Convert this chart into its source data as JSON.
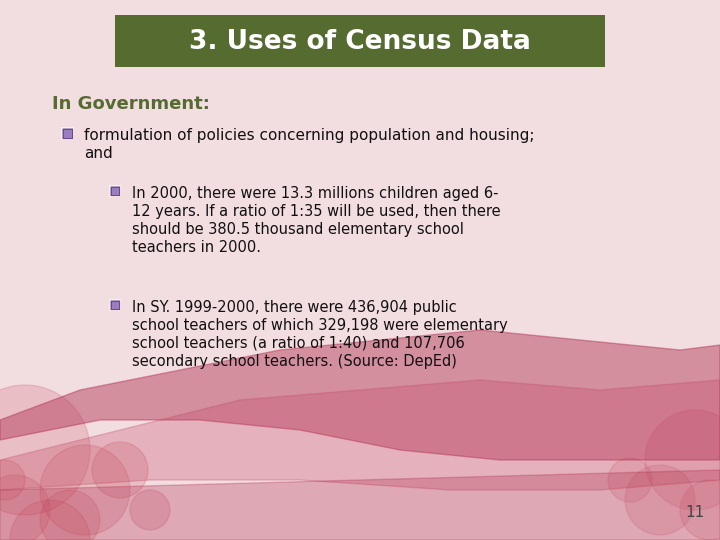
{
  "title": "3. Uses of Census Data",
  "title_bg_color": "#556b2f",
  "title_text_color": "#ffffff",
  "bg_color": "#f2dde0",
  "heading": "In Government:",
  "heading_color": "#556b2f",
  "bullet1_line1": "formulation of policies concerning population and housing;",
  "bullet1_line2": "and",
  "sub_bullet1_line1": "In 2000, there were 13.3 millions children aged 6-",
  "sub_bullet1_line2": "12 years. If a ratio of 1:35 will be used, then there",
  "sub_bullet1_line3": "should be 380.5 thousand elementary school",
  "sub_bullet1_line4": "teachers in 2000.",
  "sub_bullet2_line1": "In SY. 1999-2000, there were 436,904 public",
  "sub_bullet2_line2": "school teachers of which 329,198 were elementary",
  "sub_bullet2_line3": "school teachers (a ratio of 1:40) and 107,706",
  "sub_bullet2_line4": "secondary school teachers. (Source: DepEd)",
  "bullet_icon_color": "#7b5ea7",
  "bullet_icon_color2": "#8a6ab0",
  "page_number": "11",
  "page_number_color": "#444444",
  "circle_color": "#cc5566",
  "wave_color1": "#b03050",
  "wave_color2": "#c04060"
}
